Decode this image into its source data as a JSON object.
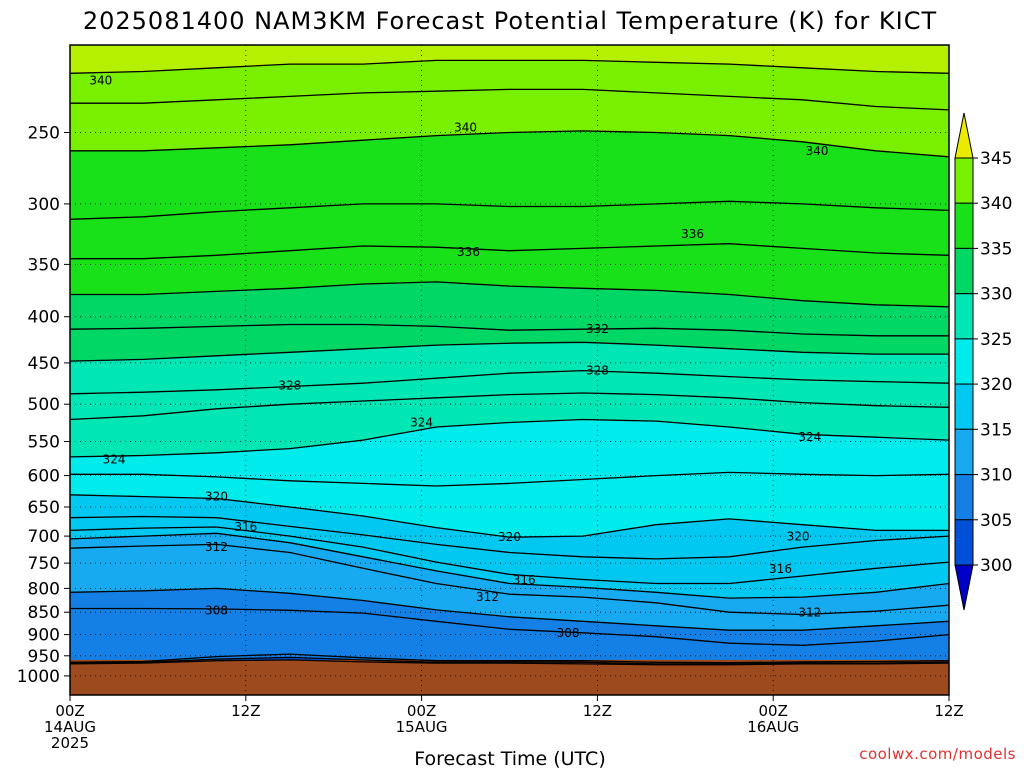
{
  "title": "2025081400 NAM3KM Forecast Potential Temperature (K) for KICT",
  "xlabel": "Forecast Time (UTC)",
  "watermark": "coolwx.com/models",
  "colors": {
    "ground": "#9c4a1e",
    "contour": "#000000",
    "bands": [
      "#0000c8",
      "#0050d8",
      "#1480e6",
      "#18aaf0",
      "#00c8f0",
      "#00ebeb",
      "#00e6b4",
      "#00d764",
      "#19e119",
      "#78f000",
      "#b4f000",
      "#ebeb00"
    ]
  },
  "chart_data": {
    "type": "heatmap",
    "title": "2025081400 NAM3KM Forecast Potential Temperature (K) for KICT",
    "xlabel": "Forecast Time (UTC)",
    "ylabel": "",
    "xticks": [
      {
        "lines": [
          "00Z",
          "14AUG",
          "2025"
        ],
        "hour": 0
      },
      {
        "lines": [
          "12Z"
        ],
        "hour": 12
      },
      {
        "lines": [
          "00Z",
          "15AUG"
        ],
        "hour": 24
      },
      {
        "lines": [
          "12Z"
        ],
        "hour": 36
      },
      {
        "lines": [
          "00Z",
          "16AUG"
        ],
        "hour": 48
      },
      {
        "lines": [
          "12Z"
        ],
        "hour": 60
      }
    ],
    "xlim": [
      0,
      60
    ],
    "yticks": [
      250,
      300,
      350,
      400,
      450,
      500,
      550,
      600,
      650,
      700,
      750,
      800,
      850,
      900,
      950,
      1000
    ],
    "ylim": [
      200,
      1050
    ],
    "yscale": "log-pressure",
    "colorbar": {
      "levels": [
        300,
        305,
        310,
        315,
        320,
        325,
        330,
        335,
        340,
        345
      ],
      "labels": [
        "345",
        "340",
        "335",
        "330",
        "325",
        "320",
        "315",
        "310",
        "305",
        "300"
      ],
      "extend": "both"
    },
    "contour_interval": 2,
    "contour_labels": [
      {
        "text": "340",
        "hour": 2.1,
        "p": 219
      },
      {
        "text": "340",
        "hour": 27.0,
        "p": 247
      },
      {
        "text": "340",
        "hour": 51.0,
        "p": 262
      },
      {
        "text": "336",
        "hour": 27.2,
        "p": 339
      },
      {
        "text": "336",
        "hour": 42.5,
        "p": 324
      },
      {
        "text": "332",
        "hour": 36.0,
        "p": 413
      },
      {
        "text": "328",
        "hour": 15.0,
        "p": 477
      },
      {
        "text": "328",
        "hour": 36.0,
        "p": 459
      },
      {
        "text": "324",
        "hour": 24.0,
        "p": 524
      },
      {
        "text": "324",
        "hour": 3.0,
        "p": 576
      },
      {
        "text": "324",
        "hour": 50.5,
        "p": 544
      },
      {
        "text": "320",
        "hour": 10.0,
        "p": 633
      },
      {
        "text": "320",
        "hour": 30.0,
        "p": 702
      },
      {
        "text": "320",
        "hour": 49.7,
        "p": 701
      },
      {
        "text": "316",
        "hour": 12.0,
        "p": 684
      },
      {
        "text": "316",
        "hour": 31.0,
        "p": 783
      },
      {
        "text": "316",
        "hour": 48.5,
        "p": 761
      },
      {
        "text": "312",
        "hour": 10.0,
        "p": 720
      },
      {
        "text": "312",
        "hour": 28.5,
        "p": 818
      },
      {
        "text": "312",
        "hour": 50.5,
        "p": 851
      },
      {
        "text": "308",
        "hour": 10.0,
        "p": 846
      },
      {
        "text": "308",
        "hour": 34.0,
        "p": 896
      }
    ],
    "isentropes": [
      {
        "theta": 300,
        "p": [
          970,
          968,
          962,
          960,
          965,
          968,
          968,
          970,
          972,
          972,
          970,
          970,
          968
        ]
      },
      {
        "theta": 304,
        "p": [
          968,
          966,
          958,
          954,
          960,
          966,
          965,
          966,
          970,
          970,
          968,
          968,
          966
        ]
      },
      {
        "theta": 306,
        "p": [
          966,
          964,
          952,
          946,
          955,
          962,
          962,
          962,
          966,
          967,
          965,
          964,
          962
        ]
      },
      {
        "theta": 308,
        "p": [
          842,
          842,
          843,
          846,
          852,
          870,
          888,
          896,
          905,
          920,
          925,
          915,
          900
        ]
      },
      {
        "theta": 310,
        "p": [
          808,
          805,
          800,
          810,
          825,
          845,
          860,
          870,
          880,
          890,
          890,
          880,
          870
        ]
      },
      {
        "theta": 312,
        "p": [
          722,
          718,
          715,
          730,
          760,
          790,
          812,
          818,
          830,
          850,
          855,
          848,
          835
        ]
      },
      {
        "theta": 314,
        "p": [
          705,
          700,
          695,
          712,
          738,
          765,
          790,
          798,
          808,
          820,
          818,
          808,
          790
        ]
      },
      {
        "theta": 316,
        "p": [
          690,
          686,
          684,
          700,
          720,
          748,
          772,
          782,
          790,
          790,
          775,
          760,
          748
        ]
      },
      {
        "theta": 318,
        "p": [
          668,
          666,
          668,
          683,
          698,
          715,
          730,
          738,
          742,
          738,
          720,
          708,
          700
        ]
      },
      {
        "theta": 320,
        "p": [
          630,
          633,
          636,
          650,
          665,
          685,
          702,
          700,
          680,
          670,
          680,
          690,
          690
        ]
      },
      {
        "theta": 322,
        "p": [
          598,
          598,
          602,
          608,
          612,
          616,
          612,
          606,
          600,
          595,
          598,
          600,
          598
        ]
      },
      {
        "theta": 324,
        "p": [
          572,
          570,
          566,
          560,
          548,
          530,
          524,
          520,
          522,
          530,
          540,
          544,
          548
        ]
      },
      {
        "theta": 326,
        "p": [
          520,
          515,
          506,
          500,
          496,
          492,
          488,
          486,
          488,
          492,
          498,
          502,
          504
        ]
      },
      {
        "theta": 328,
        "p": [
          487,
          485,
          482,
          478,
          474,
          468,
          462,
          459,
          462,
          466,
          470,
          472,
          474
        ]
      },
      {
        "theta": 330,
        "p": [
          448,
          446,
          442,
          438,
          434,
          430,
          428,
          427,
          430,
          434,
          438,
          440,
          440
        ]
      },
      {
        "theta": 332,
        "p": [
          413,
          412,
          410,
          408,
          408,
          410,
          414,
          413,
          412,
          414,
          418,
          420,
          420
        ]
      },
      {
        "theta": 334,
        "p": [
          378,
          378,
          375,
          372,
          368,
          366,
          370,
          372,
          374,
          378,
          384,
          388,
          390
        ]
      },
      {
        "theta": 336,
        "p": [
          345,
          345,
          342,
          338,
          334,
          335,
          338,
          336,
          334,
          332,
          336,
          340,
          342
        ]
      },
      {
        "theta": 338,
        "p": [
          312,
          310,
          306,
          303,
          300,
          300,
          302,
          302,
          300,
          298,
          300,
          303,
          305
        ]
      },
      {
        "theta": 340,
        "p": [
          262,
          262,
          260,
          258,
          255,
          252,
          250,
          249,
          250,
          252,
          256,
          262,
          266
        ]
      },
      {
        "theta": 342,
        "p": [
          232,
          232,
          230,
          228,
          226,
          225,
          224,
          224,
          226,
          228,
          230,
          234,
          236
        ]
      },
      {
        "theta": 344,
        "p": [
          215,
          214,
          212,
          210,
          210,
          208,
          208,
          208,
          209,
          210,
          212,
          214,
          215
        ]
      }
    ],
    "grid": true
  }
}
